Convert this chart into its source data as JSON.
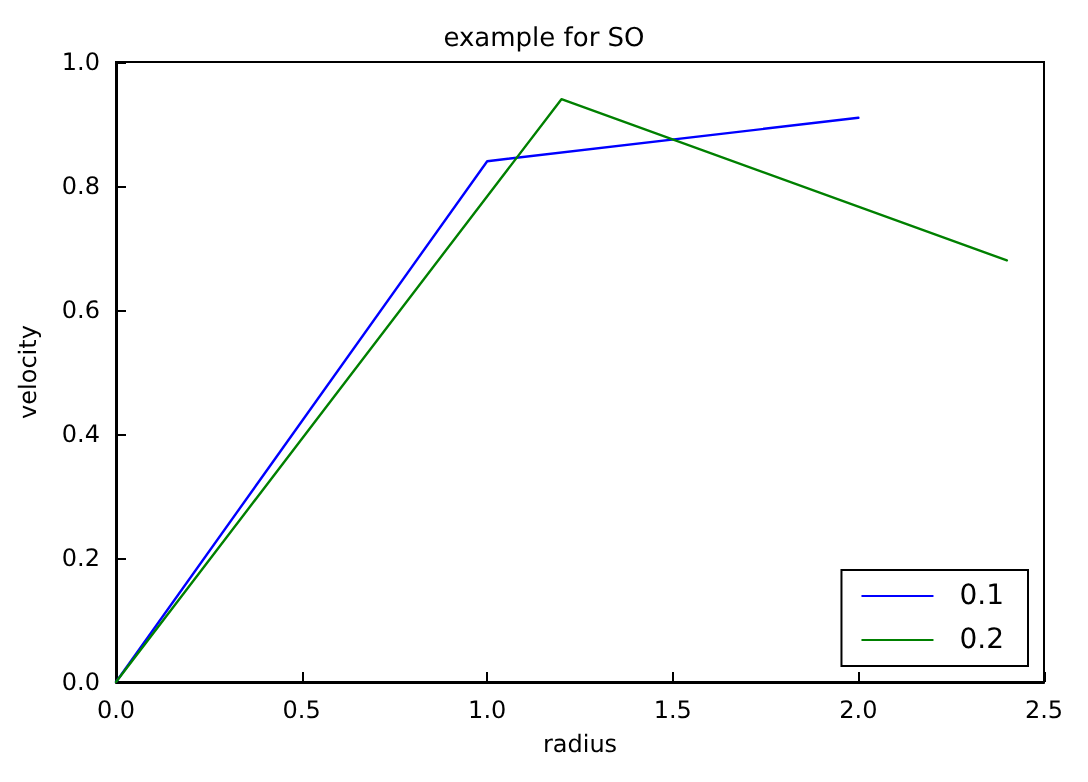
{
  "chart_data": {
    "type": "line",
    "title": "example for SO",
    "xlabel": "radius",
    "ylabel": "velocity",
    "series": [
      {
        "name": "0.1",
        "color": "#0000ff",
        "x": [
          0,
          1.0,
          2.0
        ],
        "values": [
          0,
          0.84,
          0.91
        ]
      },
      {
        "name": "0.2",
        "color": "#008000",
        "x": [
          0,
          1.2,
          2.4
        ],
        "values": [
          0,
          0.94,
          0.68
        ]
      }
    ],
    "xlim": [
      0,
      2.5
    ],
    "xticks": [
      {
        "value": 0,
        "label": "0.0"
      },
      {
        "value": 0.5,
        "label": "0.5"
      },
      {
        "value": 1,
        "label": "1.0"
      },
      {
        "value": 1.5,
        "label": "1.5"
      },
      {
        "value": 2,
        "label": "2.0"
      },
      {
        "value": 2.5,
        "label": "2.5"
      }
    ],
    "ylim": [
      0,
      1
    ],
    "yticks": [
      {
        "value": 0,
        "label": "0.0"
      },
      {
        "value": 0.2,
        "label": "0.2"
      },
      {
        "value": 0.4,
        "label": "0.4"
      },
      {
        "value": 0.6,
        "label": "0.6"
      },
      {
        "value": 0.8,
        "label": "0.8"
      },
      {
        "value": 1,
        "label": "1.0"
      }
    ],
    "grid": false,
    "legend": "bottom right",
    "marker": "none",
    "line_style": "solid"
  }
}
